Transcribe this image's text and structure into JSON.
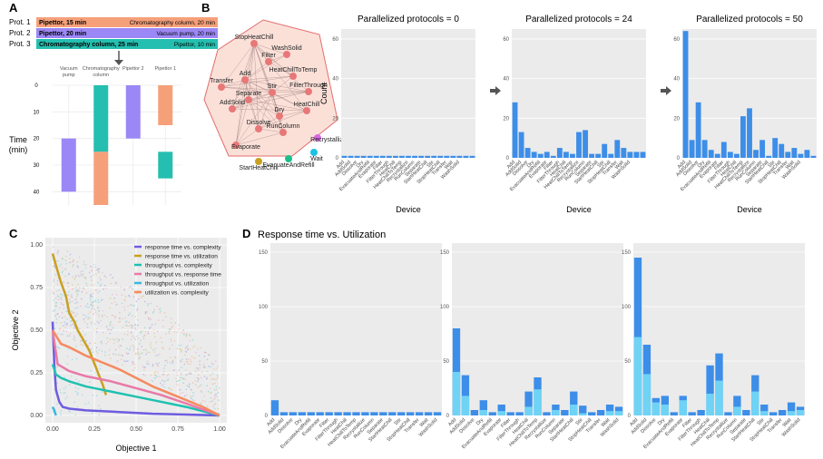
{
  "panels": {
    "A": {
      "letter": "A",
      "protocols": [
        {
          "label": "Prot. 1",
          "first": "Pipettor, 15 min",
          "second": "Chromatography column, 20 min",
          "color": "#f6a07a"
        },
        {
          "label": "Prot. 2",
          "first": "Pipettor, 20 min",
          "second": "Vacuum pump, 20 min",
          "color": "#9b87f5"
        },
        {
          "label": "Prot. 3",
          "first": "Chromatography column, 25 min",
          "second": "Pipettor, 10 min",
          "color": "#24bfb0"
        }
      ],
      "devices": [
        "Vacuum pump",
        "Chromatography column",
        "Pipettor 2",
        "Pipettor 1"
      ],
      "ylabel": "Time (min)",
      "yticks": [
        0,
        10,
        20,
        30,
        40
      ],
      "ylim": [
        0,
        45
      ],
      "bars": [
        {
          "device": 0,
          "start": 20,
          "end": 40,
          "color": "#9b87f5"
        },
        {
          "device": 1,
          "start": 0,
          "end": 25,
          "color": "#24bfb0"
        },
        {
          "device": 1,
          "start": 25,
          "end": 45,
          "color": "#f6a07a"
        },
        {
          "device": 2,
          "start": 0,
          "end": 20,
          "color": "#9b87f5"
        },
        {
          "device": 3,
          "start": 0,
          "end": 15,
          "color": "#f6a07a"
        },
        {
          "device": 3,
          "start": 25,
          "end": 35,
          "color": "#24bfb0"
        }
      ]
    },
    "B": {
      "letter": "B",
      "network_nodes": [
        "StopHeatChill",
        "WashSolid",
        "Filter",
        "Add",
        "HeatChillToTemp",
        "Transfer",
        "Stir",
        "FilterThrough",
        "AddSolid",
        "Separate",
        "HeatChill",
        "Dry",
        "Dissolve",
        "RunColumn",
        "Evaporate",
        "Recrystallize",
        "Wait",
        "EvacuateAndRefill",
        "StartHeatChill"
      ],
      "charts": [
        {
          "title": "Parallelized protocols = 0",
          "values": [
            1,
            1,
            1,
            1,
            1,
            1,
            1,
            1,
            1,
            1,
            1,
            1,
            1,
            1,
            1,
            1,
            1,
            1,
            1,
            1,
            1
          ]
        },
        {
          "title": "Parallelized protocols = 24",
          "values": [
            28,
            13,
            5,
            3,
            2,
            3,
            1,
            5,
            3,
            2,
            13,
            14,
            2,
            2,
            7,
            2,
            9,
            5,
            3,
            3,
            3
          ]
        },
        {
          "title": "Parallelized protocols = 50",
          "values": [
            64,
            9,
            28,
            9,
            4,
            2,
            8,
            3,
            2,
            21,
            25,
            4,
            9,
            1,
            10,
            7,
            3,
            5,
            2,
            4,
            1
          ]
        }
      ],
      "ylim_first": [
        0,
        65
      ],
      "ylim_other": [
        0,
        65
      ],
      "yticks": [
        0,
        20,
        40,
        60
      ],
      "xlabel": "Device",
      "ylabel": "Count",
      "categories": [
        "Add",
        "AddSolid",
        "Dissolve",
        "Dry",
        "EvacuateAndRefill",
        "Evaporate",
        "Filter",
        "FilterThrough",
        "HeatChill",
        "HeatChillToTemp",
        "Recrystallize",
        "RunColumn",
        "Separate",
        "StartHeatChill",
        "Stir",
        "StopHeatChill",
        "Transfer",
        "Wait",
        "WashSolid",
        "",
        ""
      ],
      "bar_color": "#3d8ee8"
    },
    "C": {
      "letter": "C",
      "xlabel": "Objective 1",
      "ylabel": "Objective 2",
      "ticks": [
        "0.00",
        "0.25",
        "0.50",
        "0.75",
        "1.00"
      ],
      "legend": [
        {
          "label": "response time vs. complexity",
          "color": "#6e5ce0"
        },
        {
          "label": "response time vs. utilization",
          "color": "#c9a020"
        },
        {
          "label": "throughput vs. complexity",
          "color": "#1fc1b0"
        },
        {
          "label": "throughput vs. response time",
          "color": "#e87aa8"
        },
        {
          "label": "throughput vs. utilization",
          "color": "#3ab8e0"
        },
        {
          "label": "utilization vs. complexity",
          "color": "#f58a60"
        }
      ],
      "series": [
        {
          "name": "response time vs. complexity",
          "color": "#6e5ce0",
          "x": [
            0.0,
            0.01,
            0.02,
            0.04,
            0.06,
            0.1,
            0.2,
            0.4,
            0.6,
            0.8,
            1.0
          ],
          "y": [
            0.55,
            0.3,
            0.15,
            0.08,
            0.05,
            0.04,
            0.03,
            0.02,
            0.01,
            0.005,
            0.0
          ]
        },
        {
          "name": "response time vs. utilization",
          "color": "#c9a020",
          "x": [
            0.0,
            0.02,
            0.05,
            0.08,
            0.1,
            0.13,
            0.15,
            0.18,
            0.22,
            0.26,
            0.3,
            0.32
          ],
          "y": [
            0.95,
            0.88,
            0.78,
            0.7,
            0.6,
            0.55,
            0.5,
            0.45,
            0.38,
            0.28,
            0.18,
            0.12
          ]
        },
        {
          "name": "throughput vs. complexity",
          "color": "#1fc1b0",
          "x": [
            0.0,
            0.02,
            0.05,
            0.1,
            0.2,
            0.3,
            0.45,
            0.6,
            0.8,
            1.0
          ],
          "y": [
            0.3,
            0.24,
            0.22,
            0.2,
            0.17,
            0.15,
            0.12,
            0.09,
            0.05,
            0.0
          ]
        },
        {
          "name": "throughput vs. response time",
          "color": "#e87aa8",
          "x": [
            0.0,
            0.03,
            0.1,
            0.2,
            0.35,
            0.5,
            0.65,
            0.8,
            1.0
          ],
          "y": [
            0.5,
            0.3,
            0.26,
            0.23,
            0.2,
            0.16,
            0.12,
            0.07,
            0.0
          ]
        },
        {
          "name": "throughput vs. utilization",
          "color": "#3ab8e0",
          "x": [
            0.0,
            0.01,
            0.02
          ],
          "y": [
            0.05,
            0.03,
            0.0
          ]
        },
        {
          "name": "utilization vs. complexity",
          "color": "#f58a60",
          "x": [
            0.0,
            0.05,
            0.1,
            0.2,
            0.3,
            0.4,
            0.5,
            0.6,
            0.7,
            0.8,
            0.9,
            1.0
          ],
          "y": [
            0.5,
            0.42,
            0.4,
            0.35,
            0.31,
            0.27,
            0.22,
            0.17,
            0.13,
            0.09,
            0.05,
            0.0
          ]
        }
      ]
    },
    "D": {
      "letter": "D",
      "title": "Response time vs. Utilization",
      "yticks": [
        0,
        50,
        100,
        150
      ],
      "ylim": [
        0,
        150
      ],
      "categories": [
        "Add",
        "AddSolid",
        "Dissolve",
        "Dry",
        "EvacuateAndRefill",
        "Evaporate",
        "Filter",
        "FilterThrough",
        "HeatChill",
        "HeatChillToTemp",
        "Recrystallize",
        "RunColumn",
        "Separate",
        "StartHeatChill",
        "Stir",
        "StopHeatChill",
        "Transfer",
        "Wait",
        "WashSolid"
      ],
      "color_dark": "#3d8ee8",
      "color_light": "#6fd3f5",
      "charts": [
        {
          "top": [
            14,
            3,
            3,
            3,
            3,
            3,
            3,
            3,
            3,
            3,
            3,
            3,
            3,
            3,
            3,
            3,
            3,
            3,
            3
          ],
          "low": [
            0,
            0,
            0,
            0,
            0,
            0,
            0,
            0,
            0,
            0,
            0,
            0,
            0,
            0,
            0,
            0,
            0,
            0,
            0
          ]
        },
        {
          "top": [
            80,
            37,
            5,
            14,
            3,
            10,
            3,
            3,
            22,
            35,
            3,
            10,
            5,
            22,
            9,
            3,
            5,
            10,
            8
          ],
          "low": [
            40,
            18,
            0,
            5,
            0,
            4,
            0,
            0,
            8,
            24,
            0,
            5,
            0,
            10,
            2,
            0,
            0,
            4,
            4
          ]
        },
        {
          "top": [
            145,
            65,
            16,
            18,
            3,
            18,
            3,
            5,
            46,
            57,
            3,
            18,
            5,
            37,
            10,
            3,
            5,
            12,
            8
          ],
          "low": [
            72,
            38,
            12,
            10,
            0,
            14,
            0,
            0,
            20,
            32,
            0,
            8,
            0,
            22,
            4,
            0,
            0,
            4,
            5
          ]
        }
      ]
    }
  }
}
